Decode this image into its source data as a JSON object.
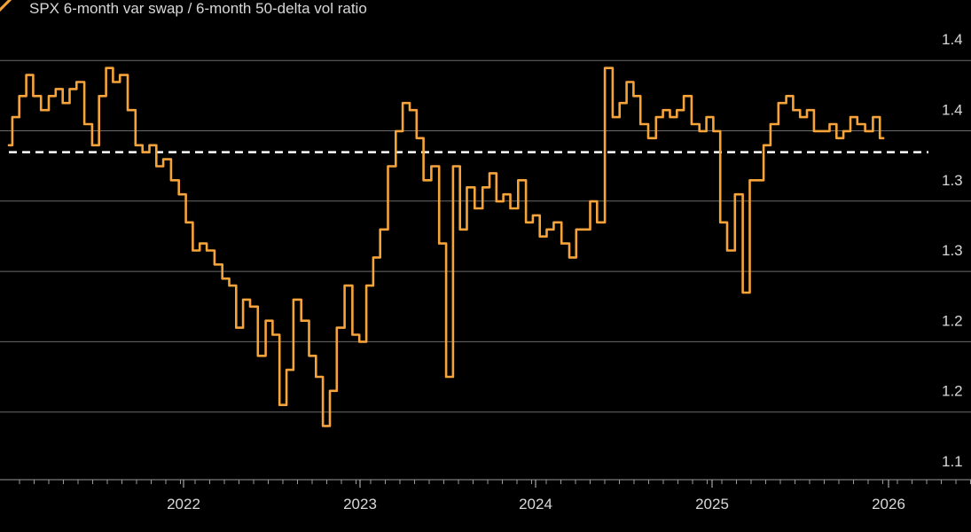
{
  "chart_data": {
    "type": "line",
    "title": "",
    "xlabel": "",
    "ylabel": "",
    "legend": {
      "position": "top-left",
      "entries": [
        {
          "label": "SPX 6-month var swap / 6-month 50-delta vol ratio",
          "color": "#f6a33a"
        }
      ]
    },
    "y_ticks": [
      "1.1",
      "1.2",
      "1.2",
      "1.3",
      "1.3",
      "1.4",
      "1.4"
    ],
    "ylim": [
      1.1,
      1.4
    ],
    "grid": true,
    "x_ticks": [
      "2022",
      "2023",
      "2024",
      "2025",
      "2026"
    ],
    "xlim": [
      2021.17,
      2026.47
    ],
    "reference_line": {
      "value": 1.32,
      "style": "dashed",
      "color": "#ffffff"
    },
    "series": [
      {
        "color": "#f6a33a",
        "x": [
          2021.17,
          2021.21,
          2021.25,
          2021.29,
          2021.33,
          2021.38,
          2021.42,
          2021.46,
          2021.5,
          2021.54,
          2021.58,
          2021.63,
          2021.67,
          2021.71,
          2021.75,
          2021.79,
          2021.83,
          2021.88,
          2021.92,
          2021.96,
          2022.0,
          2022.04,
          2022.08,
          2022.13,
          2022.17,
          2022.21,
          2022.25,
          2022.29,
          2022.33,
          2022.38,
          2022.42,
          2022.46,
          2022.5,
          2022.54,
          2022.58,
          2022.63,
          2022.67,
          2022.71,
          2022.75,
          2022.79,
          2022.83,
          2022.88,
          2022.92,
          2022.96,
          2023.0,
          2023.04,
          2023.08,
          2023.13,
          2023.17,
          2023.21,
          2023.25,
          2023.29,
          2023.33,
          2023.38,
          2023.42,
          2023.46,
          2023.5,
          2023.54,
          2023.58,
          2023.63,
          2023.67,
          2023.71,
          2023.75,
          2023.79,
          2023.83,
          2023.88,
          2023.92,
          2023.96,
          2024.0,
          2024.04,
          2024.08,
          2024.13,
          2024.17,
          2024.21,
          2024.25,
          2024.29,
          2024.33,
          2024.38,
          2024.42,
          2024.46,
          2024.5,
          2024.54,
          2024.58,
          2024.63,
          2024.67,
          2024.71,
          2024.75,
          2024.79,
          2024.83,
          2024.88,
          2024.92,
          2024.96,
          2025.0,
          2025.04,
          2025.08,
          2025.13,
          2025.17,
          2025.21,
          2025.25,
          2025.29,
          2025.33,
          2025.38,
          2025.42,
          2025.46,
          2025.5,
          2025.54,
          2025.58,
          2025.63,
          2025.67,
          2025.71,
          2025.75,
          2025.79,
          2025.83,
          2025.88,
          2025.92,
          2025.96,
          2026.0,
          2026.04,
          2026.08,
          2026.13,
          2026.17,
          2026.21
        ],
        "y": [
          1.325,
          1.345,
          1.36,
          1.375,
          1.36,
          1.35,
          1.36,
          1.365,
          1.355,
          1.365,
          1.37,
          1.34,
          1.325,
          1.36,
          1.38,
          1.37,
          1.375,
          1.35,
          1.325,
          1.32,
          1.325,
          1.31,
          1.315,
          1.3,
          1.29,
          1.27,
          1.25,
          1.255,
          1.25,
          1.24,
          1.23,
          1.225,
          1.195,
          1.215,
          1.21,
          1.175,
          1.2,
          1.19,
          1.14,
          1.165,
          1.215,
          1.2,
          1.175,
          1.16,
          1.125,
          1.15,
          1.195,
          1.225,
          1.19,
          1.185,
          1.225,
          1.245,
          1.265,
          1.31,
          1.335,
          1.355,
          1.35,
          1.33,
          1.3,
          1.31,
          1.255,
          1.16,
          1.31,
          1.265,
          1.295,
          1.28,
          1.295,
          1.305,
          1.285,
          1.29,
          1.28,
          1.3,
          1.27,
          1.275,
          1.26,
          1.265,
          1.27,
          1.255,
          1.245,
          1.265,
          1.265,
          1.285,
          1.27,
          1.38,
          1.345,
          1.355,
          1.37,
          1.36,
          1.34,
          1.33,
          1.345,
          1.35,
          1.345,
          1.35,
          1.36,
          1.34,
          1.335,
          1.345,
          1.335,
          1.27,
          1.25,
          1.29,
          1.22,
          1.3,
          1.3,
          1.325,
          1.34,
          1.355,
          1.36,
          1.35,
          1.345,
          1.35,
          1.335,
          1.335,
          1.34,
          1.33,
          1.335,
          1.345,
          1.34,
          1.335,
          1.345,
          1.33
        ]
      }
    ]
  }
}
